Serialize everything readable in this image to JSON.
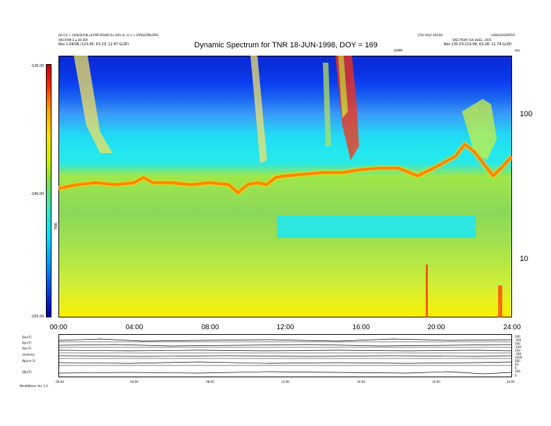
{
  "header": {
    "left_line1": "DA.0.0 > 1000/20/SB=0/CMF3FB/WF(0×100) (k~V~) > DYNS/CMS/SPEC",
    "left_line2": "ARG/FRM 3 ≥ 80.000",
    "left_line3": "Res 1.04/08 (123.45, 63.23, 12.87 G/2E)",
    "right_line1": "1/10 VALO 20/100",
    "right_line1b": "LOBGG0/SIRATHT",
    "right_line2": "SPECTRUM TLN 30/ES, 2005",
    "right_line3": "Res 135.07(119.99, 63.28, 11.74 G/2E)",
    "mid_small": "ObMM",
    "corner_small": "kHz",
    "title": "Dynamic Spectrum for TNR 18-JUN-1998, DOY = 169"
  },
  "colorbar": {
    "labels": [
      "-125.00",
      "-140.00",
      "-155.00"
    ],
    "unit": "TNR"
  },
  "chart_data": {
    "type": "heatmap",
    "title": "Dynamic Spectrum for TNR 18-JUN-1998, DOY = 169",
    "x_tick_labels": [
      "00:00",
      "04:00",
      "08:00",
      "12:00",
      "16:00",
      "20:00",
      "24:00"
    ],
    "y_tick_labels": [
      "100",
      "10"
    ],
    "y_scale": "log",
    "x_range_hours": [
      0,
      24
    ],
    "color_range": [
      -155,
      -125
    ],
    "colormap": "rainbow (blue low, red high)",
    "ridge_frequency_kHz_by_hour": {
      "hours": [
        0,
        1,
        2,
        3,
        4,
        4.5,
        5,
        6,
        7,
        8,
        9,
        9.5,
        10,
        10.5,
        11,
        11.5,
        12,
        13,
        14,
        15,
        16,
        17,
        18,
        19,
        20,
        21,
        21.5,
        22,
        22.5,
        23,
        23.5,
        24
      ],
      "freq": [
        31,
        33,
        34,
        33,
        34,
        37,
        34,
        34,
        33,
        34,
        33,
        29,
        33,
        34,
        33,
        37,
        38,
        39,
        40,
        40,
        42,
        43,
        43,
        38,
        44,
        52,
        63,
        56,
        46,
        38,
        44,
        52
      ]
    }
  },
  "bottom_panels": {
    "left_labels": [
      "Bx(nT)",
      "By(nT)",
      "Bz(nT)",
      "Vx(km/s)",
      "Np(cm-3)",
      "|B|(nT)"
    ],
    "right_labels": [
      "200",
      "-200",
      "100",
      "-100",
      "200",
      "-200",
      "1000",
      "500",
      "50",
      "0",
      "100",
      "0"
    ],
    "x_tick_labels": [
      "00:00",
      "04:00",
      "08:00",
      "12:00",
      "16:00",
      "20:00",
      "24:00"
    ],
    "footer_left": "Wind/Waves Ver. 1.0"
  }
}
